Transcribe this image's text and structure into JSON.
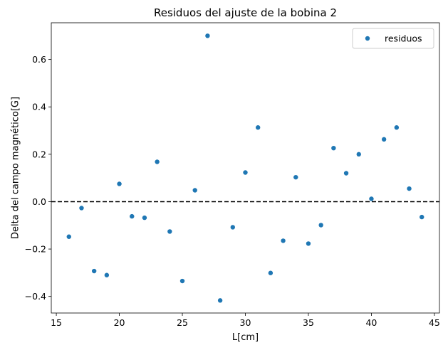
{
  "chart_data": {
    "type": "scatter",
    "title": "Residuos del ajuste de la bobina 2",
    "xlabel": "L[cm]",
    "ylabel": "Delta del campo magnético[G]",
    "xlim": [
      14.6,
      45.4
    ],
    "ylim": [
      -0.47,
      0.755
    ],
    "xticks": [
      15,
      20,
      25,
      30,
      35,
      40,
      45
    ],
    "yticks": [
      -0.4,
      -0.2,
      0.0,
      0.2,
      0.4,
      0.6
    ],
    "ytick_labels": [
      "−0.4",
      "−0.2",
      "0.0",
      "0.2",
      "0.4",
      "0.6"
    ],
    "grid": false,
    "legend_position": "top-right",
    "reference_line": {
      "y": 0.0,
      "style": "dashed",
      "color": "#000000"
    },
    "series": [
      {
        "name": "residuos",
        "color": "#1f77b4",
        "x": [
          16,
          17,
          18,
          19,
          20,
          21,
          22,
          23,
          24,
          25,
          26,
          27,
          28,
          29,
          30,
          31,
          32,
          33,
          34,
          35,
          36,
          37,
          38,
          39,
          40,
          41,
          42,
          43,
          44
        ],
        "y": [
          -0.148,
          -0.027,
          -0.293,
          -0.31,
          0.075,
          -0.062,
          -0.068,
          0.168,
          -0.126,
          -0.335,
          0.048,
          0.7,
          -0.417,
          -0.108,
          0.123,
          0.313,
          -0.301,
          -0.165,
          0.103,
          -0.177,
          -0.099,
          0.226,
          0.12,
          0.2,
          0.012,
          0.263,
          0.313,
          0.055,
          -0.065
        ]
      }
    ]
  }
}
